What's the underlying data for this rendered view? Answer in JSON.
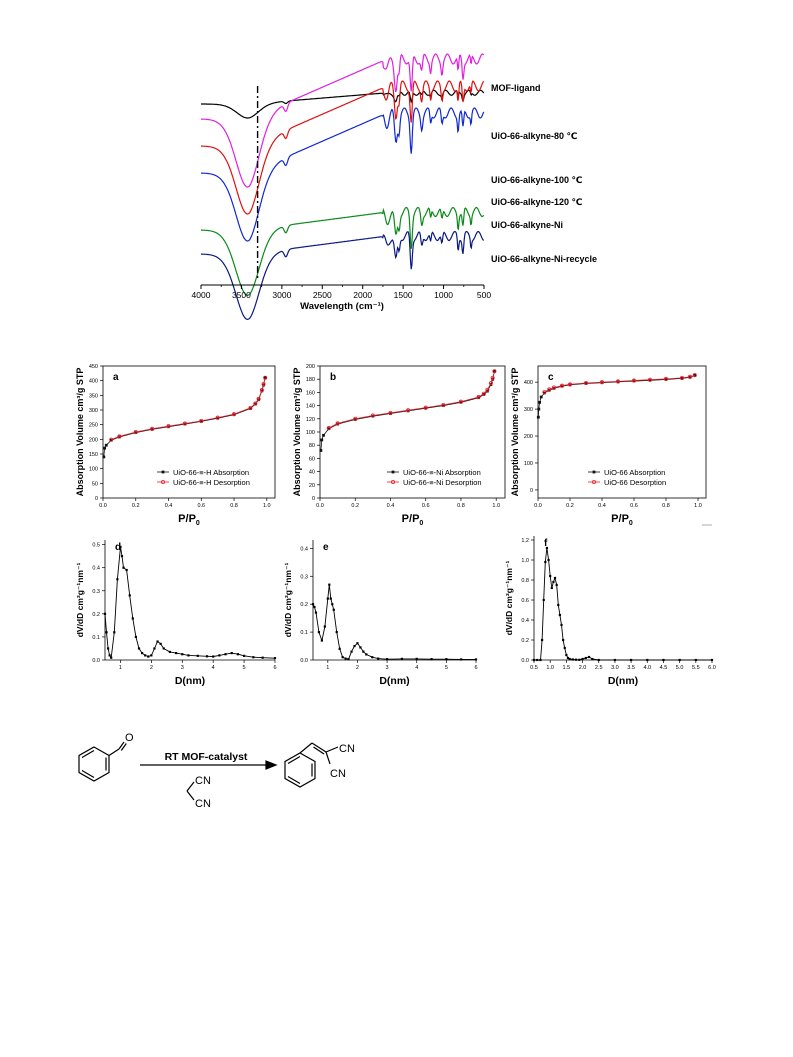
{
  "colors": {
    "ftir": [
      "#000000",
      "#e020e0",
      "#e01010",
      "#1028d0",
      "#0a8a1a",
      "#0a1a80"
    ],
    "absorption": "#111111",
    "desorption": "#e8202a",
    "axis": "#222222"
  },
  "chart_data": [
    {
      "type": "line",
      "id": "ftir",
      "xlabel": "Wavelength (cm⁻¹)",
      "ylabel": "",
      "xlim": [
        4000,
        500
      ],
      "xticks": [
        4000,
        3500,
        3000,
        2500,
        2000,
        1500,
        1000,
        500
      ],
      "reference_line_x": 3300,
      "y_ticks_shown": false,
      "legend": "labels at right end of each trace",
      "series": [
        {
          "name": "MOF-ligand"
        },
        {
          "name": "UiO-66-alkyne-80 ℃"
        },
        {
          "name": "UiO-66-alkyne-100 ℃"
        },
        {
          "name": "UiO-66-alkyne-120 ℃"
        },
        {
          "name": "UiO-66-alkyne-Ni"
        },
        {
          "name": "UiO-66-alkyne-Ni-recycle"
        }
      ]
    },
    {
      "type": "scatter",
      "id": "iso-a",
      "panel": "a",
      "xlabel": "P/P",
      "xlabel_sub": "0",
      "ylabel": "Absorption Volume cm³/g STP",
      "xlim": [
        0,
        1.05
      ],
      "ylim": [
        0,
        450
      ],
      "xticks": [
        0.0,
        0.2,
        0.4,
        0.6,
        0.8,
        1.0
      ],
      "yticks": [
        0,
        50,
        100,
        150,
        200,
        250,
        300,
        350,
        400,
        450
      ],
      "legend_position": "bottom-right",
      "series": [
        {
          "name": "UiO-66-≡-H Absorption",
          "x": [
            0.005,
            0.01,
            0.02,
            0.05,
            0.1,
            0.2,
            0.3,
            0.4,
            0.5,
            0.6,
            0.7,
            0.8,
            0.9,
            0.93,
            0.95,
            0.97,
            0.98,
            0.99
          ],
          "y": [
            140,
            170,
            180,
            197,
            208,
            223,
            234,
            243,
            252,
            261,
            272,
            284,
            305,
            320,
            335,
            365,
            385,
            410
          ]
        },
        {
          "name": "UiO-66-≡-H Desorption",
          "x": [
            0.99,
            0.98,
            0.97,
            0.95,
            0.93,
            0.9,
            0.8,
            0.7,
            0.6,
            0.5,
            0.4,
            0.3,
            0.2,
            0.1,
            0.05
          ],
          "y": [
            410,
            388,
            368,
            338,
            322,
            307,
            286,
            274,
            263,
            254,
            245,
            236,
            225,
            210,
            199
          ]
        }
      ]
    },
    {
      "type": "scatter",
      "id": "iso-b",
      "panel": "b",
      "xlabel": "P/P",
      "xlabel_sub": "0",
      "ylabel": "Absorption Volume cm³/g STP",
      "xlim": [
        0,
        1.05
      ],
      "ylim": [
        0,
        200
      ],
      "xticks": [
        0.0,
        0.2,
        0.4,
        0.6,
        0.8,
        1.0
      ],
      "yticks": [
        0,
        20,
        40,
        60,
        80,
        100,
        120,
        140,
        160,
        180,
        200
      ],
      "legend_position": "bottom-right",
      "series": [
        {
          "name": "UiO-66-≡-Ni Absorption",
          "x": [
            0.005,
            0.01,
            0.02,
            0.05,
            0.1,
            0.2,
            0.3,
            0.4,
            0.5,
            0.6,
            0.7,
            0.8,
            0.9,
            0.93,
            0.95,
            0.97,
            0.98,
            0.99
          ],
          "y": [
            72,
            88,
            95,
            105,
            112,
            119,
            124,
            128,
            132,
            136,
            140,
            145,
            152,
            157,
            162,
            172,
            180,
            192
          ]
        },
        {
          "name": "UiO-66-≡-Ni Desorption",
          "x": [
            0.99,
            0.98,
            0.97,
            0.95,
            0.93,
            0.9,
            0.8,
            0.7,
            0.6,
            0.5,
            0.4,
            0.3,
            0.2,
            0.1,
            0.05
          ],
          "y": [
            192,
            182,
            174,
            164,
            158,
            153,
            146,
            141,
            137,
            133,
            129,
            125,
            120,
            113,
            106
          ]
        }
      ]
    },
    {
      "type": "scatter",
      "id": "iso-c",
      "panel": "c",
      "xlabel": "P/P",
      "xlabel_sub": "0",
      "ylabel": "Absorption Volume cm³/g STP",
      "xlim": [
        0,
        1.05
      ],
      "ylim": [
        -30,
        460
      ],
      "xticks": [
        0.0,
        0.2,
        0.4,
        0.6,
        0.8,
        1.0
      ],
      "yticks": [
        0,
        100,
        200,
        300,
        400
      ],
      "legend_position": "bottom-right",
      "series": [
        {
          "name": "UiO-66 Absorption",
          "x": [
            0.002,
            0.005,
            0.01,
            0.02,
            0.04,
            0.07,
            0.1,
            0.15,
            0.2,
            0.3,
            0.4,
            0.5,
            0.6,
            0.7,
            0.8,
            0.9,
            0.95,
            0.98
          ],
          "y": [
            270,
            300,
            325,
            345,
            360,
            370,
            377,
            385,
            390,
            395,
            398,
            401,
            404,
            407,
            410,
            414,
            418,
            425
          ]
        },
        {
          "name": "UiO-66 Desorption",
          "x": [
            0.98,
            0.95,
            0.9,
            0.8,
            0.7,
            0.6,
            0.5,
            0.4,
            0.3,
            0.2,
            0.15,
            0.1,
            0.07,
            0.04
          ],
          "y": [
            426,
            420,
            416,
            412,
            409,
            406,
            403,
            400,
            397,
            392,
            387,
            380,
            373,
            363
          ]
        }
      ]
    },
    {
      "type": "line",
      "id": "psd-d",
      "panel": "d",
      "xlabel": "D(nm)",
      "ylabel": "dV/dD cm³g⁻¹nm⁻¹",
      "xlim": [
        0.5,
        6
      ],
      "ylim": [
        0,
        0.52
      ],
      "xticks": [
        1,
        2,
        3,
        4,
        5,
        6
      ],
      "yticks": [
        0.0,
        0.1,
        0.2,
        0.3,
        0.4,
        0.5
      ],
      "series": [
        {
          "x": [
            0.5,
            0.55,
            0.6,
            0.65,
            0.7,
            0.8,
            0.9,
            1.0,
            1.05,
            1.1,
            1.2,
            1.3,
            1.4,
            1.5,
            1.6,
            1.7,
            1.8,
            1.9,
            2.0,
            2.1,
            2.2,
            2.3,
            2.4,
            2.6,
            2.8,
            3.0,
            3.2,
            3.5,
            3.8,
            4.0,
            4.2,
            4.4,
            4.6,
            4.8,
            5.0,
            5.3,
            5.6,
            6.0
          ],
          "y": [
            0.2,
            0.12,
            0.05,
            0.02,
            0.01,
            0.12,
            0.35,
            0.49,
            0.45,
            0.4,
            0.39,
            0.28,
            0.18,
            0.1,
            0.05,
            0.03,
            0.02,
            0.015,
            0.02,
            0.05,
            0.08,
            0.07,
            0.05,
            0.035,
            0.03,
            0.025,
            0.02,
            0.018,
            0.016,
            0.015,
            0.02,
            0.025,
            0.03,
            0.025,
            0.018,
            0.012,
            0.01,
            0.008
          ]
        }
      ]
    },
    {
      "type": "line",
      "id": "psd-e",
      "panel": "e",
      "xlabel": "D(nm)",
      "ylabel": "dV/dD cm³g⁻¹nm⁻¹",
      "xlim": [
        0.5,
        6
      ],
      "ylim": [
        0,
        0.43
      ],
      "xticks": [
        1,
        2,
        3,
        4,
        5,
        6
      ],
      "yticks": [
        0.0,
        0.1,
        0.2,
        0.3,
        0.4
      ],
      "series": [
        {
          "x": [
            0.5,
            0.55,
            0.6,
            0.7,
            0.8,
            0.9,
            1.0,
            1.05,
            1.1,
            1.15,
            1.2,
            1.3,
            1.4,
            1.5,
            1.6,
            1.7,
            1.8,
            1.9,
            2.0,
            2.1,
            2.2,
            2.3,
            2.5,
            2.7,
            3.0,
            3.5,
            4.0,
            4.5,
            5.0,
            5.5,
            6.0
          ],
          "y": [
            0.2,
            0.19,
            0.17,
            0.1,
            0.07,
            0.12,
            0.22,
            0.27,
            0.22,
            0.2,
            0.18,
            0.1,
            0.04,
            0.01,
            0.005,
            0.003,
            0.03,
            0.05,
            0.06,
            0.045,
            0.03,
            0.02,
            0.01,
            0.005,
            0.003,
            0.004,
            0.004,
            0.003,
            0.003,
            0.002,
            0.002
          ]
        }
      ]
    },
    {
      "type": "line",
      "id": "psd-f",
      "panel": "f",
      "xlabel": "D(nm)",
      "ylabel": "dV/dD cm³g⁻¹nm⁻¹",
      "xlim": [
        0.5,
        6
      ],
      "ylim": [
        0,
        1.24
      ],
      "xticks": [
        0.5,
        1.0,
        1.5,
        2.0,
        2.5,
        3.0,
        3.5,
        4.0,
        4.5,
        5.0,
        5.5,
        6.0
      ],
      "xtick_decimals": 1,
      "yticks": [
        0.0,
        0.2,
        0.4,
        0.6,
        0.8,
        1.0,
        1.2
      ],
      "series": [
        {
          "x": [
            0.5,
            0.6,
            0.7,
            0.75,
            0.8,
            0.85,
            0.9,
            0.95,
            1.0,
            1.05,
            1.1,
            1.15,
            1.2,
            1.25,
            1.3,
            1.35,
            1.4,
            1.45,
            1.5,
            1.55,
            1.6,
            1.7,
            1.8,
            1.9,
            2.0,
            2.1,
            2.2,
            2.3,
            2.5,
            3.0,
            3.5,
            4.0,
            4.5,
            5.0,
            5.5,
            6.0
          ],
          "y": [
            0.0,
            0.0,
            0.0,
            0.2,
            0.6,
            0.98,
            1.12,
            1.0,
            0.84,
            0.72,
            0.78,
            0.82,
            0.75,
            0.55,
            0.45,
            0.35,
            0.2,
            0.12,
            0.05,
            0.02,
            0.01,
            0.005,
            0.003,
            0.002,
            0.01,
            0.02,
            0.03,
            0.01,
            0.0,
            0.0,
            0.0,
            0.0,
            0.0,
            0.0,
            0.0,
            0.0
          ]
        }
      ]
    }
  ],
  "scheme": {
    "reagent_label": "RT MOF-catalyst",
    "aldehyde_label": "O",
    "reagent_cn_top": "CN",
    "reagent_cn_bottom": "CN",
    "product_cn_top": "CN",
    "product_cn_bottom": "CN"
  }
}
